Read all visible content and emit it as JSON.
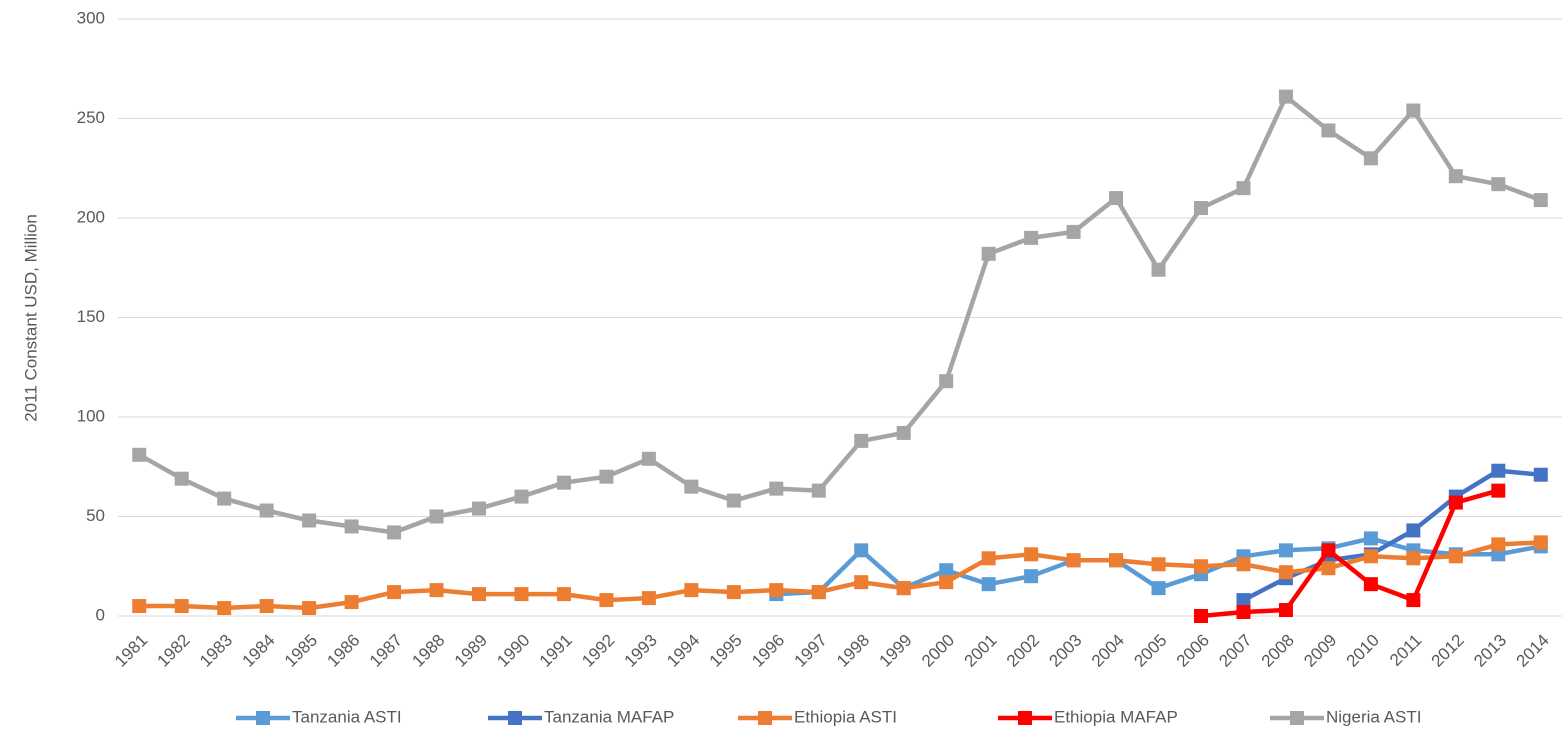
{
  "chart_data": {
    "type": "line",
    "y_label": "2011 Constant USD, Million",
    "categories": [
      "1981",
      "1982",
      "1983",
      "1984",
      "1985",
      "1986",
      "1987",
      "1988",
      "1989",
      "1990",
      "1991",
      "1992",
      "1993",
      "1994",
      "1995",
      "1996",
      "1997",
      "1998",
      "1999",
      "2000",
      "2001",
      "2002",
      "2003",
      "2004",
      "2005",
      "2006",
      "2007",
      "2008",
      "2009",
      "2010",
      "2011",
      "2012",
      "2013",
      "2014"
    ],
    "series": [
      {
        "name": "Tanzania ASTI",
        "color": "#5b9bd5",
        "values": [
          null,
          null,
          null,
          null,
          null,
          null,
          null,
          null,
          null,
          null,
          null,
          null,
          null,
          null,
          null,
          11,
          12,
          33,
          14,
          23,
          16,
          20,
          28,
          28,
          14,
          21,
          30,
          33,
          34,
          39,
          33,
          31,
          31,
          35
        ]
      },
      {
        "name": "Tanzania MAFAP",
        "color": "#4472c4",
        "values": [
          null,
          null,
          null,
          null,
          null,
          null,
          null,
          null,
          null,
          null,
          null,
          null,
          null,
          null,
          null,
          null,
          null,
          null,
          null,
          null,
          null,
          null,
          null,
          null,
          null,
          null,
          8,
          19,
          28,
          31,
          43,
          60,
          73,
          71
        ]
      },
      {
        "name": "Ethiopia ASTI",
        "color": "#ed7d31",
        "values": [
          5,
          5,
          4,
          5,
          4,
          7,
          12,
          13,
          11,
          11,
          11,
          8,
          9,
          13,
          12,
          13,
          12,
          17,
          14,
          17,
          29,
          31,
          28,
          28,
          26,
          25,
          26,
          22,
          24,
          30,
          29,
          30,
          36,
          37
        ]
      },
      {
        "name": "Ethiopia MAFAP",
        "color": "#ff0000",
        "values": [
          null,
          null,
          null,
          null,
          null,
          null,
          null,
          null,
          null,
          null,
          null,
          null,
          null,
          null,
          null,
          null,
          null,
          null,
          null,
          null,
          null,
          null,
          null,
          null,
          null,
          0,
          2,
          3,
          33,
          16,
          8,
          57,
          63,
          null
        ]
      },
      {
        "name": "Nigeria ASTI",
        "color": "#a5a5a5",
        "values": [
          81,
          69,
          59,
          53,
          48,
          45,
          42,
          50,
          54,
          60,
          67,
          70,
          79,
          65,
          58,
          64,
          63,
          88,
          92,
          118,
          182,
          190,
          193,
          210,
          174,
          205,
          215,
          261,
          244,
          230,
          254,
          221,
          217,
          209
        ]
      }
    ],
    "ylim": [
      0,
      300
    ],
    "yticks": [
      0,
      50,
      100,
      150,
      200,
      250,
      300
    ],
    "grid": true,
    "legend": "bottom"
  }
}
